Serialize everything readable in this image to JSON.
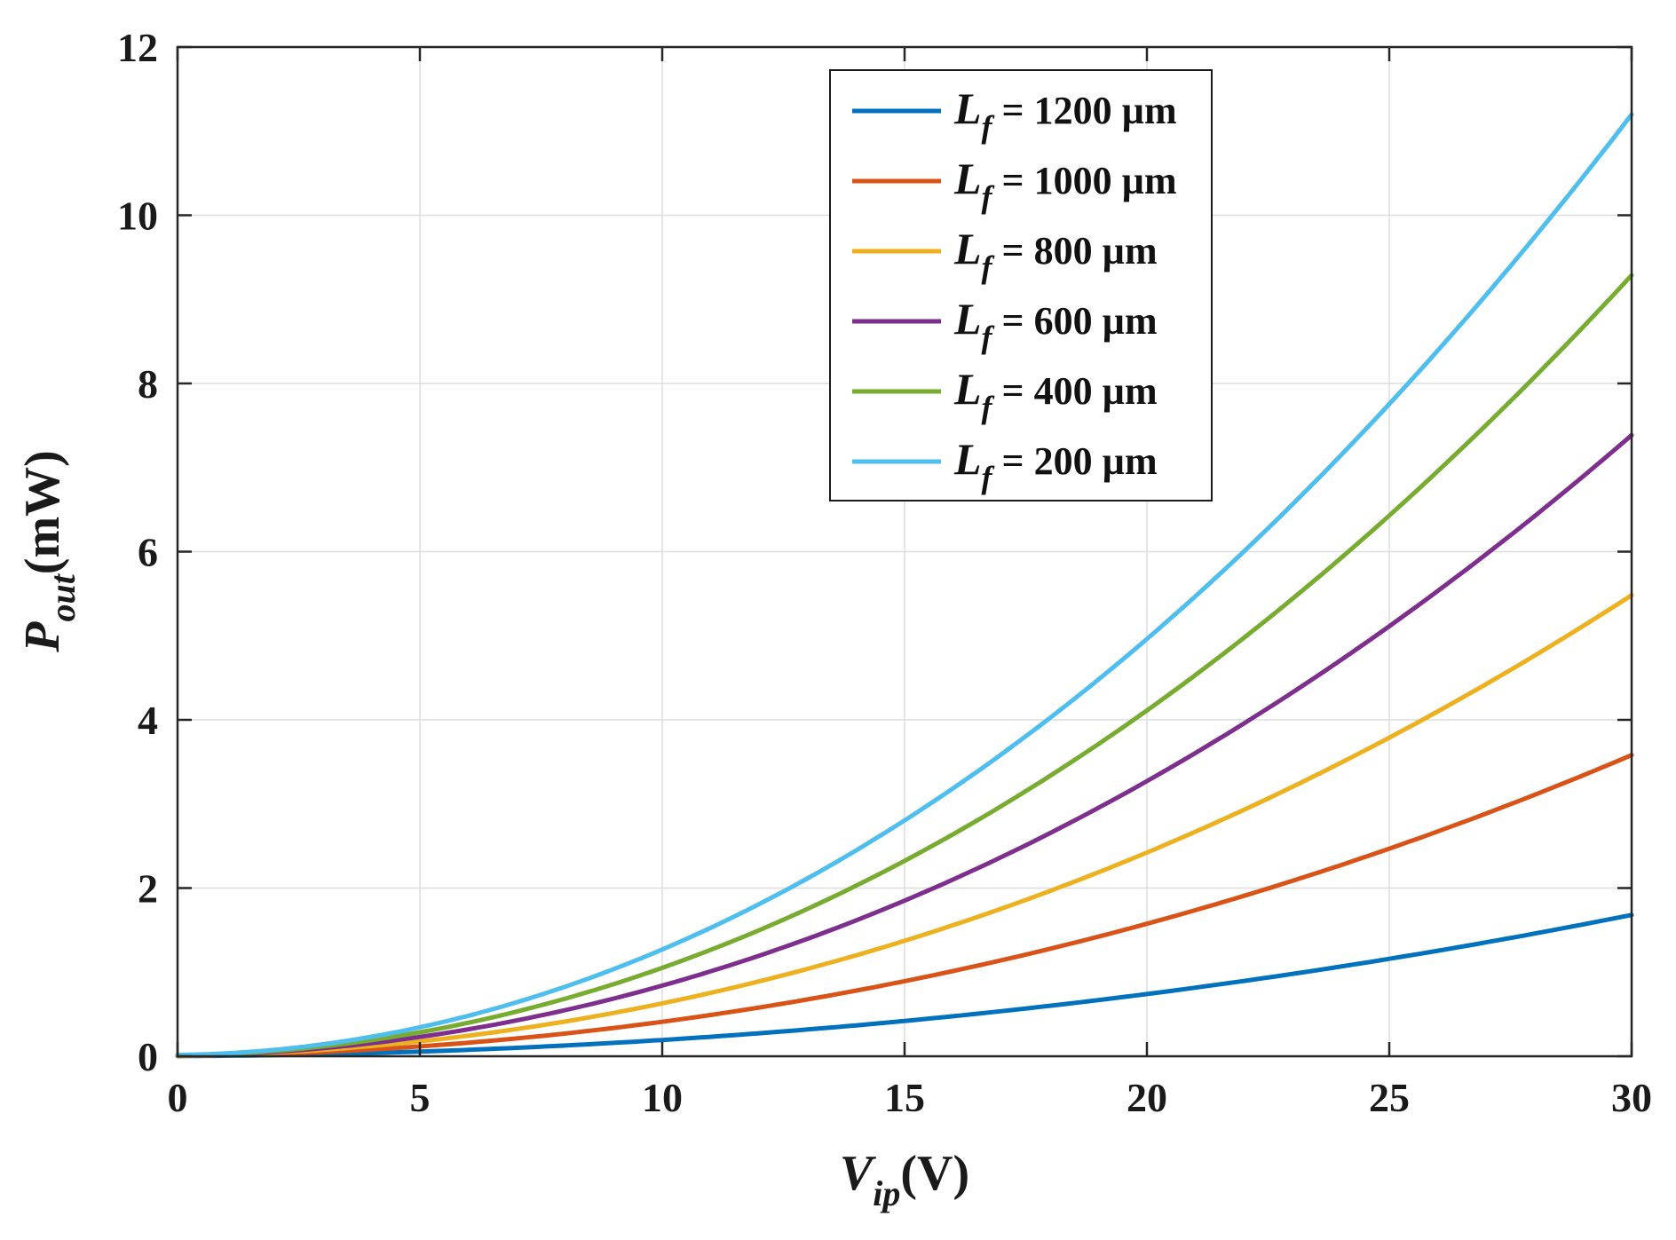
{
  "chart_data": {
    "type": "line",
    "title": "",
    "xlabel": {
      "main": "V",
      "sub": "ip",
      "unit": "(V)"
    },
    "ylabel": {
      "main": "P",
      "sub": "out",
      "unit": "(mW)"
    },
    "xlim": [
      0,
      30
    ],
    "ylim": [
      0,
      12
    ],
    "xticks": [
      0,
      5,
      10,
      15,
      20,
      25,
      30
    ],
    "yticks": [
      0,
      2,
      4,
      6,
      8,
      10,
      12
    ],
    "grid": true,
    "legend_position": "top-right",
    "x": [
      0,
      5,
      10,
      15,
      20,
      25,
      30
    ],
    "series": [
      {
        "name": "1200",
        "legend_main": "L",
        "legend_sub": "f",
        "legend_rest": " = 1200 µm",
        "color": "#0072BD",
        "values": [
          0,
          0.06,
          0.19,
          0.42,
          0.74,
          1.16,
          1.68
        ]
      },
      {
        "name": "1000",
        "legend_main": "L",
        "legend_sub": "f",
        "legend_rest": " = 1000 µm",
        "color": "#D95319",
        "values": [
          0,
          0.13,
          0.4,
          0.89,
          1.58,
          2.47,
          3.58
        ]
      },
      {
        "name": "800",
        "legend_main": "L",
        "legend_sub": "f",
        "legend_rest": " = 800 µm",
        "color": "#EDB120",
        "values": [
          0,
          0.2,
          0.61,
          1.37,
          2.43,
          3.79,
          5.48
        ]
      },
      {
        "name": "600",
        "legend_main": "L",
        "legend_sub": "f",
        "legend_rest": " = 600 µm",
        "color": "#7E2F8E",
        "values": [
          0,
          0.26,
          0.82,
          1.84,
          3.28,
          5.12,
          7.38
        ]
      },
      {
        "name": "400",
        "legend_main": "L",
        "legend_sub": "f",
        "legend_rest": " = 400 µm",
        "color": "#77AC30",
        "values": [
          0,
          0.32,
          1.03,
          2.31,
          4.12,
          6.44,
          9.28
        ]
      },
      {
        "name": "200",
        "legend_main": "L",
        "legend_sub": "f",
        "legend_rest": " = 200 µm",
        "color": "#4DBEEE",
        "values": [
          0,
          0.39,
          1.24,
          2.79,
          4.97,
          7.77,
          11.19
        ]
      }
    ]
  }
}
